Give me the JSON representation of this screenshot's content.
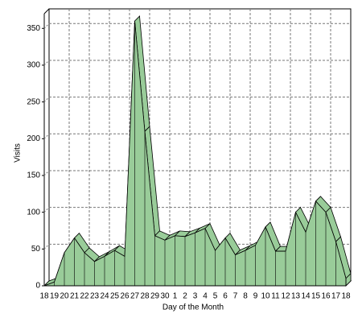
{
  "chart_data": {
    "type": "area3d",
    "x_label": "Day of the Month",
    "y_label": "Visits",
    "categories": [
      "18",
      "19",
      "20",
      "21",
      "22",
      "23",
      "24",
      "25",
      "26",
      "27",
      "28",
      "29",
      "30",
      "1",
      "2",
      "3",
      "4",
      "5",
      "6",
      "7",
      "8",
      "9",
      "10",
      "11",
      "12",
      "13",
      "14",
      "15",
      "16",
      "17",
      "18"
    ],
    "values": [
      0,
      5,
      45,
      65,
      45,
      33,
      40,
      48,
      40,
      360,
      210,
      68,
      62,
      68,
      67,
      72,
      78,
      48,
      65,
      42,
      48,
      55,
      80,
      47,
      47,
      100,
      73,
      115,
      100,
      60,
      10
    ],
    "color": "#99cc99",
    "ylim": [
      0,
      370
    ],
    "yticks": [
      0,
      50,
      100,
      150,
      200,
      250,
      300,
      350
    ],
    "grid": true
  }
}
